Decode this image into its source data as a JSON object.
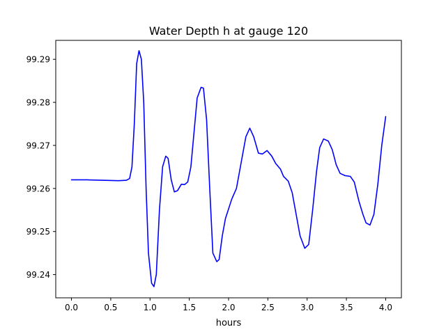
{
  "chart_data": {
    "type": "line",
    "title": "Water Depth h at gauge 120",
    "xlabel": "hours",
    "ylabel": "",
    "xlim": [
      -0.2,
      4.2
    ],
    "ylim": [
      99.2346,
      99.2944
    ],
    "xticks": [
      0.0,
      0.5,
      1.0,
      1.5,
      2.0,
      2.5,
      3.0,
      3.5,
      4.0
    ],
    "xtick_labels": [
      "0.0",
      "0.5",
      "1.0",
      "1.5",
      "2.0",
      "2.5",
      "3.0",
      "3.5",
      "4.0"
    ],
    "yticks": [
      99.24,
      99.25,
      99.26,
      99.27,
      99.28,
      99.29
    ],
    "ytick_labels": [
      "99.24",
      "99.25",
      "99.26",
      "99.27",
      "99.28",
      "99.29"
    ],
    "grid": false,
    "series": [
      {
        "color": "#0000ff",
        "points": [
          [
            0.0,
            99.262
          ],
          [
            0.2,
            99.262
          ],
          [
            0.4,
            99.2619
          ],
          [
            0.6,
            99.2618
          ],
          [
            0.7,
            99.2619
          ],
          [
            0.74,
            99.2623
          ],
          [
            0.77,
            99.265
          ],
          [
            0.8,
            99.275
          ],
          [
            0.83,
            99.289
          ],
          [
            0.86,
            99.292
          ],
          [
            0.89,
            99.29
          ],
          [
            0.92,
            99.28
          ],
          [
            0.95,
            99.26
          ],
          [
            0.98,
            99.245
          ],
          [
            1.02,
            99.238
          ],
          [
            1.05,
            99.2372
          ],
          [
            1.08,
            99.24
          ],
          [
            1.12,
            99.255
          ],
          [
            1.16,
            99.265
          ],
          [
            1.2,
            99.2675
          ],
          [
            1.23,
            99.267
          ],
          [
            1.27,
            99.262
          ],
          [
            1.31,
            99.2592
          ],
          [
            1.35,
            99.2595
          ],
          [
            1.4,
            99.261
          ],
          [
            1.44,
            99.2609
          ],
          [
            1.48,
            99.2615
          ],
          [
            1.52,
            99.265
          ],
          [
            1.56,
            99.273
          ],
          [
            1.6,
            99.281
          ],
          [
            1.65,
            99.2835
          ],
          [
            1.68,
            99.2833
          ],
          [
            1.72,
            99.276
          ],
          [
            1.76,
            99.26
          ],
          [
            1.8,
            99.245
          ],
          [
            1.85,
            99.243
          ],
          [
            1.88,
            99.2435
          ],
          [
            1.92,
            99.249
          ],
          [
            1.96,
            99.253
          ],
          [
            2.04,
            99.2575
          ],
          [
            2.1,
            99.26
          ],
          [
            2.16,
            99.266
          ],
          [
            2.22,
            99.272
          ],
          [
            2.27,
            99.274
          ],
          [
            2.32,
            99.272
          ],
          [
            2.38,
            99.2682
          ],
          [
            2.43,
            99.268
          ],
          [
            2.49,
            99.2688
          ],
          [
            2.55,
            99.2675
          ],
          [
            2.6,
            99.2658
          ],
          [
            2.66,
            99.2645
          ],
          [
            2.7,
            99.2628
          ],
          [
            2.76,
            99.2617
          ],
          [
            2.81,
            99.259
          ],
          [
            2.86,
            99.254
          ],
          [
            2.91,
            99.249
          ],
          [
            2.97,
            99.2461
          ],
          [
            3.02,
            99.247
          ],
          [
            3.07,
            99.255
          ],
          [
            3.12,
            99.264
          ],
          [
            3.16,
            99.2695
          ],
          [
            3.21,
            99.2715
          ],
          [
            3.27,
            99.271
          ],
          [
            3.32,
            99.269
          ],
          [
            3.37,
            99.2655
          ],
          [
            3.42,
            99.2635
          ],
          [
            3.48,
            99.263
          ],
          [
            3.55,
            99.2628
          ],
          [
            3.6,
            99.2615
          ],
          [
            3.66,
            99.257
          ],
          [
            3.71,
            99.254
          ],
          [
            3.75,
            99.252
          ],
          [
            3.8,
            99.2515
          ],
          [
            3.85,
            99.254
          ],
          [
            3.9,
            99.261
          ],
          [
            3.95,
            99.27
          ],
          [
            4.0,
            99.2767
          ]
        ]
      }
    ]
  }
}
